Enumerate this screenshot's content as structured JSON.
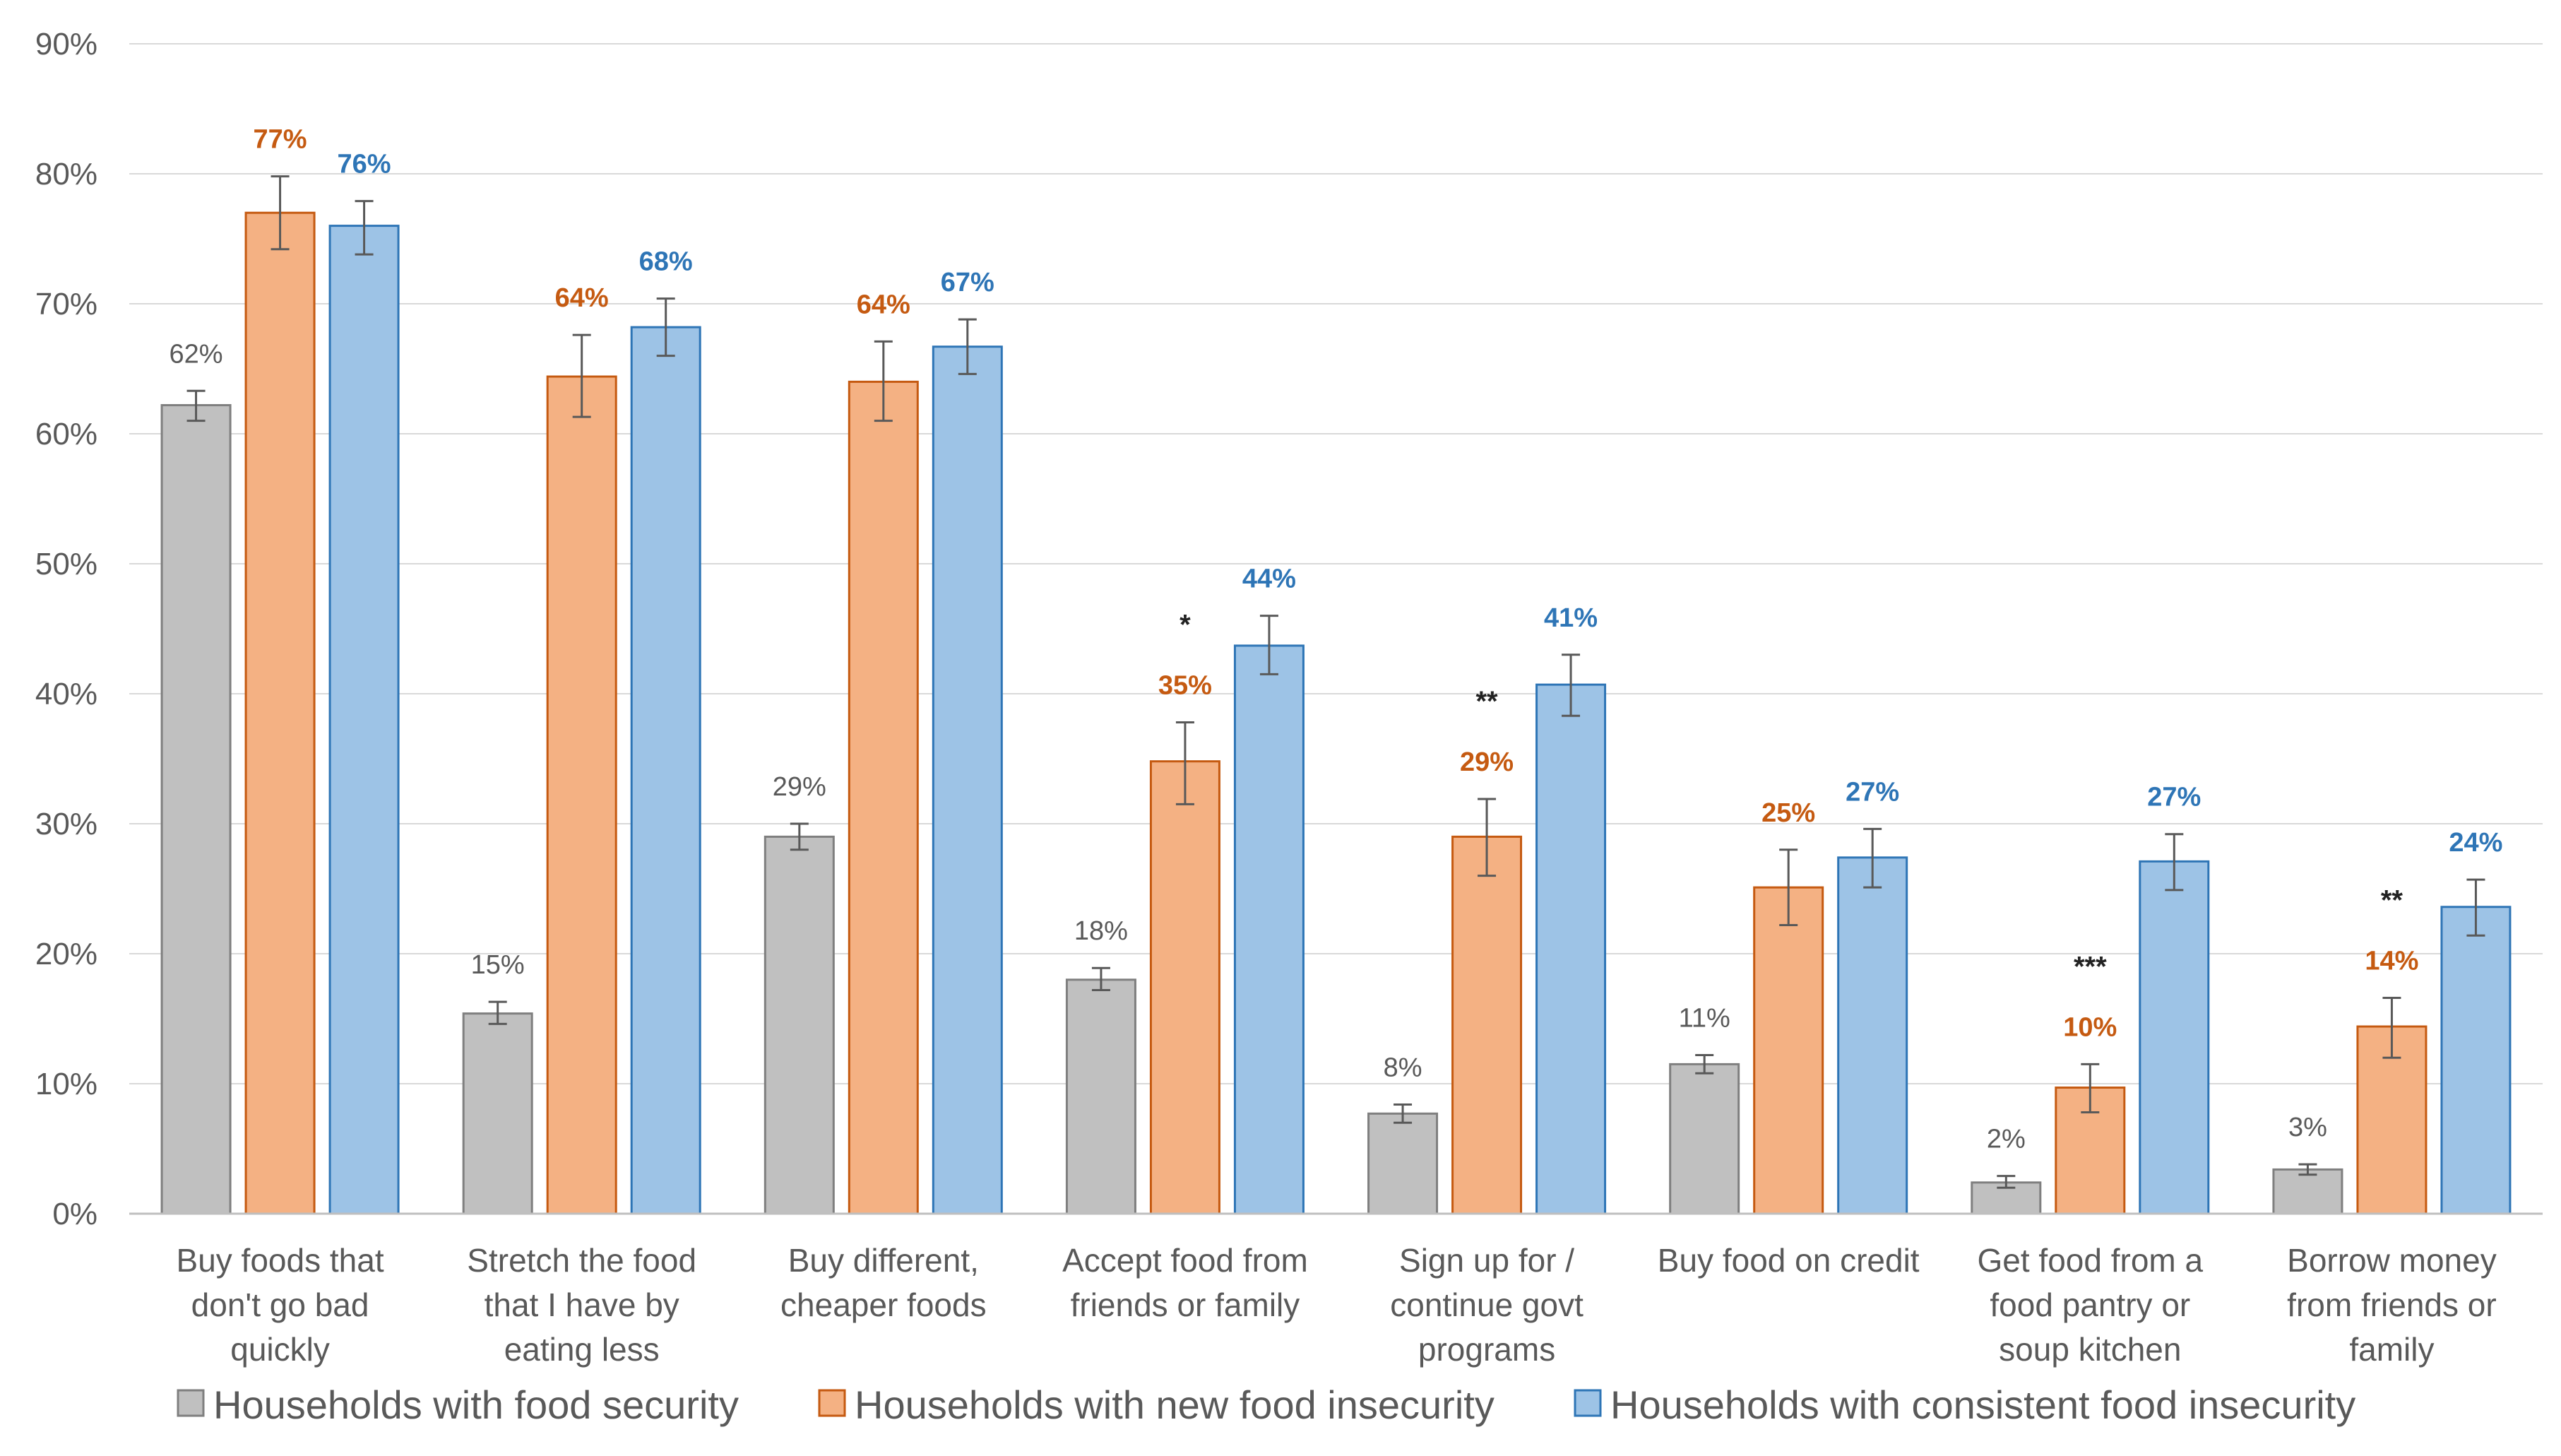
{
  "chart_data": {
    "type": "bar",
    "title": "",
    "xlabel": "",
    "ylabel": "",
    "ylim": [
      0,
      90
    ],
    "yticks": [
      0,
      10,
      20,
      30,
      40,
      50,
      60,
      70,
      80,
      90
    ],
    "ytick_labels": [
      "0%",
      "10%",
      "20%",
      "30%",
      "40%",
      "50%",
      "60%",
      "70%",
      "80%",
      "90%"
    ],
    "grid": true,
    "legend_position": "bottom",
    "categories": [
      [
        "Buy foods that",
        "don't go bad",
        "quickly"
      ],
      [
        "Stretch the food",
        "that I have by",
        "eating less"
      ],
      [
        "Buy different,",
        "cheaper foods"
      ],
      [
        "Accept food from",
        "friends or family"
      ],
      [
        "Sign up for /",
        "continue govt",
        "programs"
      ],
      [
        "Buy food on credit"
      ],
      [
        "Get food from a",
        "food pantry or",
        "soup kitchen"
      ],
      [
        "Borrow money",
        "from friends or",
        "family"
      ]
    ],
    "series": [
      {
        "name": "Households with food security",
        "color": "#c0c0c0",
        "stroke": "#7f7f7f",
        "label_color": "#595959",
        "values": [
          62.2,
          15.4,
          29.0,
          18.0,
          7.7,
          11.5,
          2.4,
          3.4
        ],
        "error_low": [
          61.0,
          14.6,
          28.0,
          17.2,
          7.0,
          10.8,
          2.0,
          3.0
        ],
        "error_high": [
          63.3,
          16.3,
          30.0,
          18.9,
          8.4,
          12.2,
          2.9,
          3.8
        ],
        "labels": [
          "62%",
          "15%",
          "29%",
          "18%",
          "8%",
          "11%",
          "2%",
          "3%"
        ]
      },
      {
        "name": "Households with new food insecurity",
        "color": "#f4b183",
        "stroke": "#c55a11",
        "label_color": "#c55a11",
        "values": [
          77.0,
          64.4,
          64.0,
          34.8,
          29.0,
          25.1,
          9.7,
          14.4
        ],
        "error_low": [
          74.2,
          61.3,
          61.0,
          31.5,
          26.0,
          22.2,
          7.8,
          12.0
        ],
        "error_high": [
          79.8,
          67.6,
          67.1,
          37.8,
          31.9,
          28.0,
          11.5,
          16.6
        ],
        "labels": [
          "77%",
          "64%",
          "64%",
          "35%",
          "29%",
          "25%",
          "10%",
          "14%"
        ]
      },
      {
        "name": "Households with consistent food insecurity",
        "color": "#9dc3e6",
        "stroke": "#2e75b6",
        "label_color": "#2e75b6",
        "values": [
          76.0,
          68.2,
          66.7,
          43.7,
          40.7,
          27.4,
          27.1,
          23.6
        ],
        "error_low": [
          73.8,
          66.0,
          64.6,
          41.5,
          38.3,
          25.1,
          24.9,
          21.4
        ],
        "error_high": [
          77.9,
          70.4,
          68.8,
          46.0,
          43.0,
          29.6,
          29.2,
          25.7
        ],
        "labels": [
          "76%",
          "68%",
          "67%",
          "44%",
          "41%",
          "27%",
          "27%",
          "24%"
        ]
      }
    ],
    "significance": [
      "",
      "",
      "",
      "*",
      "**",
      "",
      "***",
      "**"
    ]
  }
}
